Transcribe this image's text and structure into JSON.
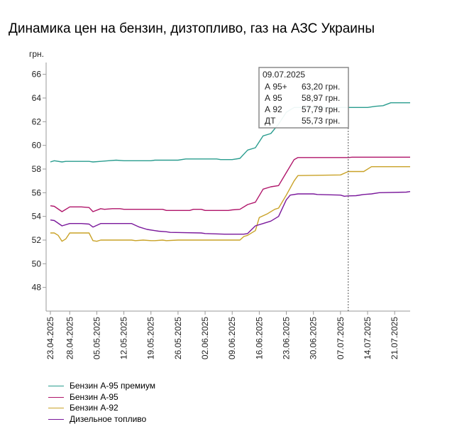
{
  "chart_data": {
    "type": "line",
    "title": "Динамика цен на бензин, дизтопливо, газ на АЗС Украины",
    "ylabel": "грн.",
    "ylim": [
      46,
      67
    ],
    "yticks": [
      48,
      50,
      52,
      54,
      56,
      58,
      60,
      62,
      64,
      66
    ],
    "x_start": "2025-04-23",
    "x_end": "2025-07-25",
    "xticks": [
      "23.04.2025",
      "28.04.2025",
      "05.05.2025",
      "12.05.2025",
      "19.05.2025",
      "26.05.2025",
      "02.06.2025",
      "09.06.2025",
      "16.06.2025",
      "23.06.2025",
      "30.06.2025",
      "07.07.2025",
      "14.07.2025",
      "21.07.2025"
    ],
    "grid": false,
    "legend_position": "bottom-left",
    "series": [
      {
        "name": "Бензин А-95 премиум",
        "color": "#2a9d8f",
        "points": [
          [
            "2025-04-23",
            58.6
          ],
          [
            "2025-04-24",
            58.7
          ],
          [
            "2025-04-26",
            58.6
          ],
          [
            "2025-04-27",
            58.65
          ],
          [
            "2025-05-03",
            58.65
          ],
          [
            "2025-05-04",
            58.6
          ],
          [
            "2025-05-06",
            58.65
          ],
          [
            "2025-05-08",
            58.7
          ],
          [
            "2025-05-10",
            58.75
          ],
          [
            "2025-05-12",
            58.7
          ],
          [
            "2025-05-19",
            58.7
          ],
          [
            "2025-05-20",
            58.75
          ],
          [
            "2025-05-26",
            58.75
          ],
          [
            "2025-05-28",
            58.85
          ],
          [
            "2025-06-05",
            58.85
          ],
          [
            "2025-06-06",
            58.8
          ],
          [
            "2025-06-09",
            58.8
          ],
          [
            "2025-06-11",
            58.9
          ],
          [
            "2025-06-13",
            59.6
          ],
          [
            "2025-06-15",
            59.8
          ],
          [
            "2025-06-17",
            60.8
          ],
          [
            "2025-06-19",
            61.0
          ],
          [
            "2025-06-21",
            61.8
          ],
          [
            "2025-06-23",
            62.8
          ],
          [
            "2025-06-25",
            63.2
          ],
          [
            "2025-07-12",
            63.2
          ],
          [
            "2025-07-14",
            63.2
          ],
          [
            "2025-07-16",
            63.3
          ],
          [
            "2025-07-18",
            63.35
          ],
          [
            "2025-07-20",
            63.6
          ],
          [
            "2025-07-25",
            63.6
          ]
        ]
      },
      {
        "name": "Бензин А-95",
        "color": "#b0156a",
        "points": [
          [
            "2025-04-23",
            54.9
          ],
          [
            "2025-04-24",
            54.85
          ],
          [
            "2025-04-26",
            54.4
          ],
          [
            "2025-04-28",
            54.8
          ],
          [
            "2025-05-01",
            54.8
          ],
          [
            "2025-05-03",
            54.75
          ],
          [
            "2025-05-04",
            54.4
          ],
          [
            "2025-05-06",
            54.65
          ],
          [
            "2025-05-07",
            54.6
          ],
          [
            "2025-05-09",
            54.65
          ],
          [
            "2025-05-11",
            54.65
          ],
          [
            "2025-05-12",
            54.6
          ],
          [
            "2025-05-22",
            54.6
          ],
          [
            "2025-05-23",
            54.5
          ],
          [
            "2025-05-29",
            54.5
          ],
          [
            "2025-05-30",
            54.6
          ],
          [
            "2025-06-01",
            54.6
          ],
          [
            "2025-06-02",
            54.5
          ],
          [
            "2025-06-08",
            54.5
          ],
          [
            "2025-06-09",
            54.55
          ],
          [
            "2025-06-11",
            54.6
          ],
          [
            "2025-06-13",
            55.0
          ],
          [
            "2025-06-15",
            55.2
          ],
          [
            "2025-06-17",
            56.3
          ],
          [
            "2025-06-19",
            56.5
          ],
          [
            "2025-06-21",
            56.6
          ],
          [
            "2025-06-23",
            57.7
          ],
          [
            "2025-06-25",
            58.8
          ],
          [
            "2025-06-26",
            58.97
          ],
          [
            "2025-07-09",
            58.97
          ],
          [
            "2025-07-10",
            59.0
          ],
          [
            "2025-07-25",
            59.0
          ]
        ]
      },
      {
        "name": "Бензин А-92",
        "color": "#c9a227",
        "points": [
          [
            "2025-04-23",
            52.6
          ],
          [
            "2025-04-24",
            52.6
          ],
          [
            "2025-04-25",
            52.4
          ],
          [
            "2025-04-26",
            51.9
          ],
          [
            "2025-04-27",
            52.1
          ],
          [
            "2025-04-28",
            52.6
          ],
          [
            "2025-05-03",
            52.6
          ],
          [
            "2025-05-04",
            51.95
          ],
          [
            "2025-05-05",
            51.9
          ],
          [
            "2025-05-06",
            52.0
          ],
          [
            "2025-05-14",
            52.0
          ],
          [
            "2025-05-15",
            51.95
          ],
          [
            "2025-05-17",
            52.0
          ],
          [
            "2025-05-19",
            51.95
          ],
          [
            "2025-05-20",
            51.95
          ],
          [
            "2025-05-22",
            52.0
          ],
          [
            "2025-05-23",
            51.95
          ],
          [
            "2025-05-26",
            52.0
          ],
          [
            "2025-06-11",
            52.0
          ],
          [
            "2025-06-12",
            52.3
          ],
          [
            "2025-06-13",
            52.4
          ],
          [
            "2025-06-15",
            52.8
          ],
          [
            "2025-06-16",
            53.9
          ],
          [
            "2025-06-18",
            54.2
          ],
          [
            "2025-06-20",
            54.6
          ],
          [
            "2025-06-21",
            54.7
          ],
          [
            "2025-06-23",
            55.8
          ],
          [
            "2025-06-25",
            57.0
          ],
          [
            "2025-06-26",
            57.45
          ],
          [
            "2025-07-07",
            57.5
          ],
          [
            "2025-07-09",
            57.79
          ],
          [
            "2025-07-13",
            57.79
          ],
          [
            "2025-07-15",
            58.2
          ],
          [
            "2025-07-25",
            58.2
          ]
        ]
      },
      {
        "name": "Дизельное топливо",
        "color": "#7a189b",
        "points": [
          [
            "2025-04-23",
            53.7
          ],
          [
            "2025-04-24",
            53.65
          ],
          [
            "2025-04-26",
            53.2
          ],
          [
            "2025-04-28",
            53.4
          ],
          [
            "2025-05-01",
            53.4
          ],
          [
            "2025-05-03",
            53.35
          ],
          [
            "2025-05-04",
            53.1
          ],
          [
            "2025-05-06",
            53.4
          ],
          [
            "2025-05-14",
            53.4
          ],
          [
            "2025-05-16",
            53.1
          ],
          [
            "2025-05-18",
            52.9
          ],
          [
            "2025-05-20",
            52.8
          ],
          [
            "2025-05-21",
            52.75
          ],
          [
            "2025-05-23",
            52.7
          ],
          [
            "2025-05-24",
            52.65
          ],
          [
            "2025-06-01",
            52.6
          ],
          [
            "2025-06-02",
            52.55
          ],
          [
            "2025-06-07",
            52.5
          ],
          [
            "2025-06-12",
            52.5
          ],
          [
            "2025-06-13",
            52.55
          ],
          [
            "2025-06-15",
            53.2
          ],
          [
            "2025-06-17",
            53.4
          ],
          [
            "2025-06-19",
            53.6
          ],
          [
            "2025-06-21",
            54.0
          ],
          [
            "2025-06-23",
            55.4
          ],
          [
            "2025-06-24",
            55.8
          ],
          [
            "2025-06-26",
            55.9
          ],
          [
            "2025-06-30",
            55.9
          ],
          [
            "2025-07-01",
            55.85
          ],
          [
            "2025-07-07",
            55.8
          ],
          [
            "2025-07-08",
            55.7
          ],
          [
            "2025-07-09",
            55.73
          ],
          [
            "2025-07-11",
            55.75
          ],
          [
            "2025-07-13",
            55.85
          ],
          [
            "2025-07-15",
            55.9
          ],
          [
            "2025-07-17",
            56.0
          ],
          [
            "2025-07-24",
            56.05
          ],
          [
            "2025-07-25",
            56.1
          ]
        ]
      }
    ],
    "tooltip": {
      "date": "09.07.2025",
      "x": "2025-07-09",
      "rows": [
        {
          "label": "А 95+",
          "value": "63,20 грн."
        },
        {
          "label": "А 95",
          "value": "58,97 грн."
        },
        {
          "label": "А 92",
          "value": "57,79 грн."
        },
        {
          "label": "ДТ",
          "value": "55,73 грн."
        }
      ]
    }
  }
}
